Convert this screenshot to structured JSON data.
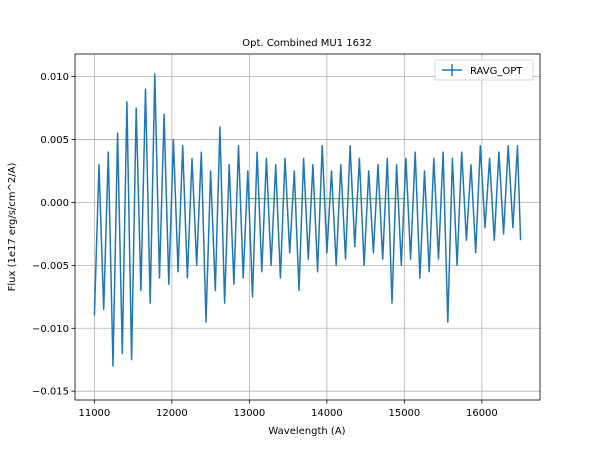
{
  "chart_data": {
    "type": "line",
    "title": "Opt. Combined MU1 1632",
    "xlabel": "Wavelength (A)",
    "ylabel": "Flux (1e17 erg/s/cm^2/A)",
    "xlim": [
      10750,
      16750
    ],
    "ylim": [
      -0.0157,
      0.0118
    ],
    "xticks": [
      11000,
      12000,
      13000,
      14000,
      15000,
      16000
    ],
    "yticks": [
      -0.015,
      -0.01,
      -0.005,
      0.0,
      0.005,
      0.01
    ],
    "xtick_labels": [
      "11000",
      "12000",
      "13000",
      "14000",
      "15000",
      "16000"
    ],
    "ytick_labels": [
      "−0.015",
      "−0.010",
      "−0.005",
      "0.000",
      "0.005",
      "0.010"
    ],
    "grid": true,
    "legend_position": "upper right",
    "series": [
      {
        "name": "RAVG_OPT",
        "color": "#1f77b4",
        "x": [
          11000,
          11060,
          11120,
          11180,
          11240,
          11300,
          11360,
          11420,
          11480,
          11540,
          11600,
          11660,
          11720,
          11780,
          11840,
          11900,
          11960,
          12020,
          12080,
          12140,
          12200,
          12260,
          12320,
          12380,
          12440,
          12500,
          12560,
          12620,
          12680,
          12740,
          12800,
          12860,
          12920,
          12980,
          13040,
          13100,
          13160,
          13220,
          13280,
          13340,
          13400,
          13460,
          13520,
          13580,
          13640,
          13700,
          13760,
          13820,
          13880,
          13940,
          14000,
          14060,
          14120,
          14180,
          14240,
          14300,
          14360,
          14420,
          14480,
          14540,
          14600,
          14660,
          14720,
          14780,
          14840,
          14900,
          14960,
          15020,
          15080,
          15140,
          15200,
          15260,
          15320,
          15380,
          15440,
          15500,
          15560,
          15620,
          15680,
          15740,
          15800,
          15860,
          15920,
          15980,
          16040,
          16100,
          16160,
          16220,
          16280,
          16340,
          16400,
          16460,
          16500
        ],
        "y": [
          -0.009,
          0.003,
          -0.0085,
          0.004,
          -0.013,
          0.0055,
          -0.012,
          0.008,
          -0.0125,
          0.0075,
          -0.007,
          0.009,
          -0.008,
          0.0102,
          -0.006,
          0.007,
          -0.0065,
          0.005,
          -0.0055,
          0.0045,
          -0.006,
          0.0035,
          -0.005,
          0.004,
          -0.0095,
          0.0025,
          -0.007,
          0.006,
          -0.008,
          0.003,
          -0.0065,
          0.0045,
          -0.006,
          0.0025,
          -0.0075,
          0.004,
          -0.0055,
          0.0035,
          -0.005,
          0.003,
          -0.006,
          0.0035,
          -0.004,
          0.0025,
          -0.007,
          0.0035,
          -0.0045,
          0.003,
          -0.0055,
          0.0045,
          -0.004,
          0.0025,
          -0.005,
          0.003,
          -0.0045,
          0.0045,
          -0.0035,
          0.0035,
          -0.005,
          0.0025,
          -0.004,
          0.003,
          -0.0045,
          0.0035,
          -0.008,
          0.003,
          -0.005,
          0.0035,
          -0.0045,
          0.004,
          -0.006,
          0.0025,
          -0.0055,
          0.0035,
          -0.0045,
          0.004,
          -0.0095,
          0.0035,
          -0.005,
          0.004,
          -0.003,
          0.003,
          -0.004,
          0.0045,
          -0.002,
          0.0035,
          -0.003,
          0.004,
          -0.0025,
          0.0045,
          -0.002,
          0.0045,
          -0.003
        ]
      }
    ],
    "reference_line": {
      "color": "#2ca02c",
      "x": [
        13000,
        15000
      ],
      "y": [
        0.0003,
        0.0003
      ]
    }
  }
}
